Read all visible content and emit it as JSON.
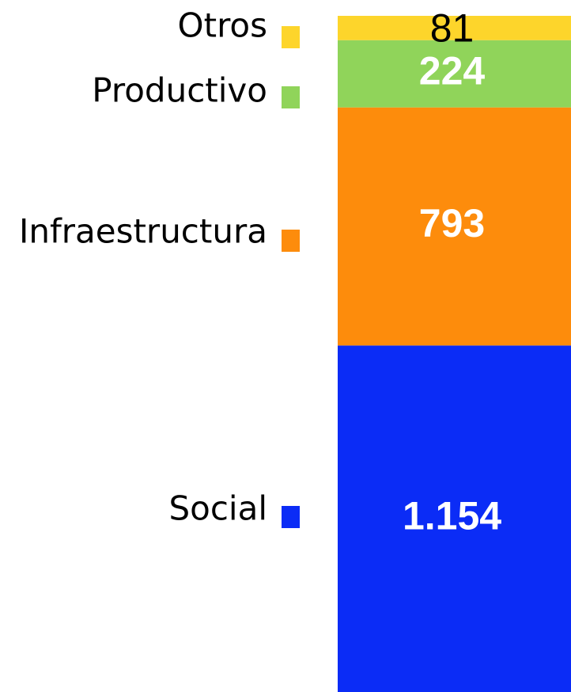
{
  "chart_data": {
    "type": "bar",
    "stacked": true,
    "categories": [
      null
    ],
    "series": [
      {
        "name": "Social",
        "color": "#0b2cf6",
        "values": [
          1154
        ],
        "value_labels": [
          "1.154"
        ]
      },
      {
        "name": "Infraestructura",
        "color": "#fd8c0c",
        "values": [
          793
        ],
        "value_labels": [
          "793"
        ]
      },
      {
        "name": "Productivo",
        "color": "#90d45a",
        "values": [
          224
        ],
        "value_labels": [
          "224"
        ]
      },
      {
        "name": "Otros",
        "color": "#fdd52b",
        "values": [
          81
        ],
        "value_labels": [
          "81"
        ]
      }
    ]
  }
}
